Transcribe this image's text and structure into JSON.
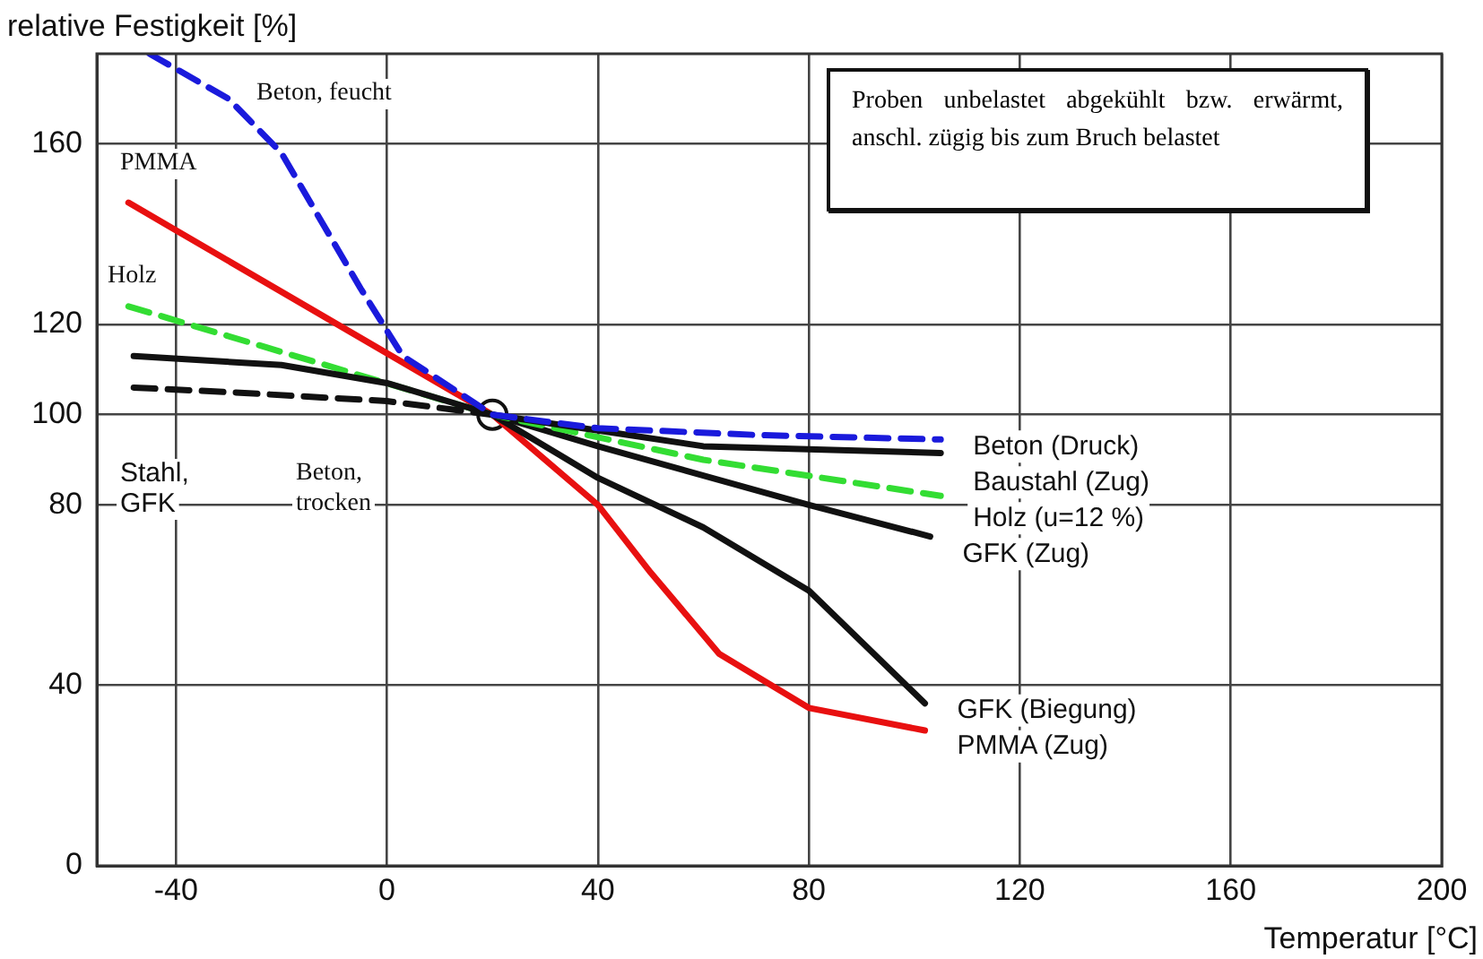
{
  "chart_data": {
    "type": "line",
    "xlabel": "Temperatur [°C]",
    "ylabel": "relative Festigkeit [%]",
    "xlim": [
      -55,
      200
    ],
    "xticks": [
      -40,
      0,
      40,
      80,
      120,
      160,
      200
    ],
    "ylim": [
      0,
      180
    ],
    "yticks": [
      0,
      40,
      80,
      100,
      120,
      160
    ],
    "grid": true,
    "legend": false,
    "marker": "none",
    "series": [
      {
        "name": "Beton (Druck)",
        "color": "#1a1adc",
        "line_style": "dashed",
        "x": [
          -45,
          -30,
          -20,
          -5,
          3,
          20,
          40,
          70,
          105
        ],
        "values": [
          180,
          170,
          158,
          128,
          113,
          100,
          97,
          95.5,
          94.5
        ]
      },
      {
        "color": "#111111",
        "line_style": "dashed",
        "x": [
          -48,
          -30,
          0,
          20
        ],
        "values": [
          106,
          105,
          103,
          100
        ]
      },
      {
        "name": "Baustahl (Zug)",
        "color": "#111111",
        "line_style": "solid",
        "x": [
          -48,
          -20,
          0,
          20,
          60,
          105
        ],
        "values": [
          113,
          111,
          107,
          100,
          93,
          91.5
        ]
      },
      {
        "name": "Holz (u=12 %)",
        "color": "#33dd33",
        "line_style": "dashed",
        "x": [
          -49,
          20,
          60,
          105
        ],
        "values": [
          124,
          100,
          90,
          82
        ]
      },
      {
        "name": "GFK (Zug)",
        "color": "#111111",
        "line_style": "solid",
        "x": [
          20,
          40,
          80,
          103
        ],
        "values": [
          100,
          93,
          80,
          73
        ]
      },
      {
        "name": "GFK (Biegung)",
        "color": "#111111",
        "line_style": "solid",
        "x": [
          20,
          40,
          60,
          80,
          102
        ],
        "values": [
          100,
          86,
          75,
          61,
          36
        ]
      },
      {
        "name": "PMMA (Zug)",
        "color": "#e81010",
        "line_style": "solid",
        "x": [
          -49,
          20,
          40,
          50,
          63,
          80,
          102
        ],
        "values": [
          147,
          100,
          80,
          65,
          47,
          35,
          30
        ]
      },
      {
        "type": "scatter",
        "color": "#ffffff",
        "marker": "circle",
        "x": [
          20
        ],
        "values": [
          100
        ]
      }
    ],
    "annotations": [
      "Beton, feucht",
      "PMMA",
      "Holz",
      "Stahl,\nGFK",
      "Beton,\ntrocken",
      "Proben unbelastet abgekühlt bzw. erwärmt, anschl. zügig bis zum Bruch belastet"
    ]
  }
}
